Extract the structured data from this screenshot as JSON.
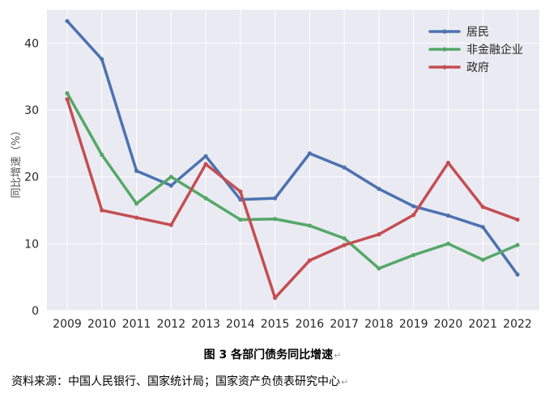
{
  "chart_data": {
    "type": "line",
    "categories": [
      "2009",
      "2010",
      "2011",
      "2012",
      "2013",
      "2014",
      "2015",
      "2016",
      "2017",
      "2018",
      "2019",
      "2020",
      "2021",
      "2022"
    ],
    "series": [
      {
        "name": "居民",
        "color": "#4c72b0",
        "values": [
          43.3,
          37.6,
          20.9,
          18.7,
          23.1,
          16.6,
          16.8,
          23.5,
          21.4,
          18.2,
          15.6,
          14.2,
          12.5,
          5.4
        ]
      },
      {
        "name": "非金融企业",
        "color": "#55a868",
        "values": [
          32.5,
          23.3,
          16.0,
          20.0,
          16.8,
          13.6,
          13.7,
          12.7,
          10.8,
          6.3,
          8.3,
          10.0,
          7.6,
          9.8
        ]
      },
      {
        "name": "政府",
        "color": "#c44e52",
        "values": [
          31.6,
          15.0,
          13.9,
          12.8,
          21.9,
          17.8,
          1.9,
          7.5,
          9.8,
          11.4,
          14.3,
          22.1,
          15.5,
          13.6
        ]
      }
    ],
    "xlabel": "",
    "ylabel": "同比增速（%）",
    "ylim": [
      0,
      45
    ],
    "yticks": [
      0,
      10,
      20,
      30,
      40
    ],
    "grid": true,
    "legend_position": "top-right"
  },
  "caption": "图 3  各部门债务同比增速",
  "source": "资料来源：中国人民银行、国家统计局；国家资产负债表研究中心",
  "paragraph_mark": "↵"
}
